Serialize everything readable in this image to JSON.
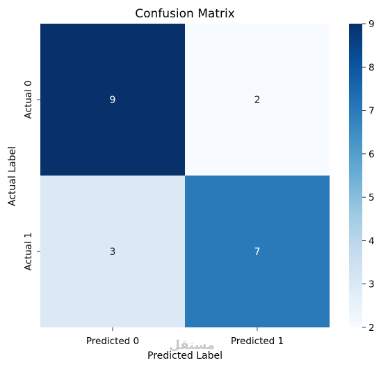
{
  "chart_data": {
    "type": "heatmap",
    "title": "Confusion Matrix",
    "xlabel": "Predicted Label",
    "ylabel": "Actual Label",
    "x_categories": [
      "Predicted 0",
      "Predicted 1"
    ],
    "y_categories": [
      "Actual 0",
      "Actual 1"
    ],
    "values": [
      [
        9,
        2
      ],
      [
        3,
        7
      ]
    ],
    "colormap": "Blues",
    "colorbar": {
      "min": 2,
      "max": 9,
      "ticks": [
        2,
        3,
        4,
        5,
        6,
        7,
        8,
        9
      ]
    }
  },
  "watermark": "مستقل"
}
